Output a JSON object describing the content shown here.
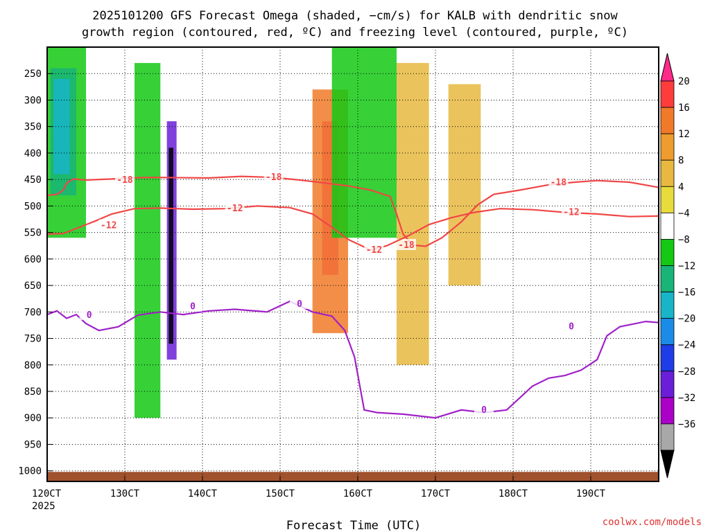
{
  "chart_data": {
    "type": "heatmap",
    "title": [
      "2025101200 GFS Forecast Omega (shaded, −cm/s) for KALB with dendritic snow",
      "growth region (contoured, red, ºC) and freezing level (contoured, purple, ºC)"
    ],
    "xlabel": "Forecast Time (UTC)",
    "ylabel": "",
    "xticks": [
      "120CT",
      "130CT",
      "140CT",
      "150CT",
      "160CT",
      "170CT",
      "180CT",
      "190CT"
    ],
    "xtick_sub": "2025",
    "x_range_hours": [
      0,
      189
    ],
    "yticks": [
      250,
      300,
      350,
      400,
      450,
      500,
      550,
      600,
      650,
      700,
      750,
      800,
      850,
      900,
      950,
      1000
    ],
    "y_range_hpa": [
      200,
      1020
    ],
    "colorbar": {
      "labels": [
        "20",
        "16",
        "12",
        "8",
        "4",
        "−4",
        "−8",
        "−12",
        "−16",
        "−20",
        "−24",
        "−28",
        "−32",
        "−36"
      ],
      "colors": [
        "#ff2a8a",
        "#ff3c3c",
        "#f07a28",
        "#ee9c2e",
        "#e8b840",
        "#e8dc3c",
        "#ffffff",
        "#14c814",
        "#18b478",
        "#18b4c8",
        "#1a8ce8",
        "#1e3ce8",
        "#6a1ed8",
        "#aa00c8",
        "#a8a8a8",
        "#000000"
      ]
    },
    "contours": [
      {
        "name": "-18 ºC",
        "color": "#f04646",
        "points": [
          [
            0,
            480
          ],
          [
            3,
            478
          ],
          [
            5,
            470
          ],
          [
            6,
            457
          ],
          [
            8,
            449
          ],
          [
            12,
            451
          ],
          [
            20,
            449
          ],
          [
            25,
            447
          ],
          [
            33,
            446
          ],
          [
            50,
            447
          ],
          [
            60,
            444
          ],
          [
            70,
            446
          ],
          [
            78,
            451
          ],
          [
            85,
            456
          ],
          [
            93,
            462
          ],
          [
            100,
            470
          ],
          [
            106,
            482
          ],
          [
            108,
            515
          ],
          [
            110,
            553
          ],
          [
            113,
            574
          ],
          [
            117,
            576
          ],
          [
            122,
            560
          ],
          [
            128,
            530
          ],
          [
            133,
            498
          ],
          [
            138,
            478
          ],
          [
            146,
            470
          ],
          [
            155,
            460
          ],
          [
            163,
            455
          ],
          [
            170,
            452
          ],
          [
            180,
            455
          ],
          [
            189,
            465
          ]
        ],
        "labels": [
          {
            "text": "-18",
            "x": 24,
            "y": 451
          },
          {
            "text": "-18",
            "x": 70,
            "y": 446
          },
          {
            "text": "-18",
            "x": 111,
            "y": 574
          },
          {
            "text": "-18",
            "x": 158,
            "y": 456
          }
        ]
      },
      {
        "name": "-12 ºC",
        "color": "#f04646",
        "points": [
          [
            0,
            553
          ],
          [
            5,
            552
          ],
          [
            10,
            540
          ],
          [
            15,
            528
          ],
          [
            20,
            515
          ],
          [
            27,
            505
          ],
          [
            35,
            504
          ],
          [
            45,
            506
          ],
          [
            55,
            505
          ],
          [
            65,
            500
          ],
          [
            75,
            503
          ],
          [
            82,
            515
          ],
          [
            88,
            540
          ],
          [
            93,
            563
          ],
          [
            100,
            583
          ],
          [
            105,
            575
          ],
          [
            112,
            555
          ],
          [
            118,
            535
          ],
          [
            125,
            522
          ],
          [
            132,
            512
          ],
          [
            140,
            505
          ],
          [
            150,
            507
          ],
          [
            160,
            512
          ],
          [
            170,
            515
          ],
          [
            180,
            520
          ],
          [
            189,
            519
          ]
        ],
        "labels": [
          {
            "text": "-12",
            "x": 19,
            "y": 537
          },
          {
            "text": "-12",
            "x": 58,
            "y": 505
          },
          {
            "text": "-12",
            "x": 101,
            "y": 583
          },
          {
            "text": "-12",
            "x": 162,
            "y": 512
          }
        ]
      },
      {
        "name": "0 ºC",
        "color": "#a020c8",
        "points": [
          [
            0,
            705
          ],
          [
            3,
            698
          ],
          [
            6,
            712
          ],
          [
            9,
            705
          ],
          [
            12,
            722
          ],
          [
            16,
            735
          ],
          [
            22,
            728
          ],
          [
            28,
            706
          ],
          [
            35,
            700
          ],
          [
            42,
            705
          ],
          [
            50,
            698
          ],
          [
            58,
            695
          ],
          [
            68,
            700
          ],
          [
            75,
            680
          ],
          [
            82,
            700
          ],
          [
            88,
            708
          ],
          [
            92,
            735
          ],
          [
            95,
            785
          ],
          [
            98,
            885
          ],
          [
            102,
            890
          ],
          [
            110,
            893
          ],
          [
            120,
            900
          ],
          [
            128,
            885
          ],
          [
            135,
            890
          ],
          [
            142,
            885
          ],
          [
            150,
            840
          ],
          [
            155,
            825
          ],
          [
            160,
            820
          ],
          [
            165,
            810
          ],
          [
            170,
            790
          ],
          [
            173,
            745
          ],
          [
            177,
            728
          ],
          [
            185,
            718
          ],
          [
            189,
            720
          ]
        ],
        "labels": [
          {
            "text": "0",
            "x": 13,
            "y": 706
          },
          {
            "text": "0",
            "x": 45,
            "y": 690
          },
          {
            "text": "0",
            "x": 78,
            "y": 685
          },
          {
            "text": "0",
            "x": 135,
            "y": 885
          },
          {
            "text": "0",
            "x": 162,
            "y": 728
          }
        ]
      }
    ],
    "shaded_regions": [
      {
        "color": "#14c814",
        "x_range": [
          0,
          12
        ],
        "p_range": [
          200,
          560
        ],
        "value": -8
      },
      {
        "color": "#18b478",
        "x_range": [
          1,
          9
        ],
        "p_range": [
          240,
          480
        ],
        "value": -12
      },
      {
        "color": "#18b4c8",
        "x_range": [
          2,
          7
        ],
        "p_range": [
          260,
          440
        ],
        "value": -16
      },
      {
        "color": "#14c814",
        "x_range": [
          27,
          35
        ],
        "p_range": [
          230,
          900
        ],
        "value": -8
      },
      {
        "color": "#6a1ed8",
        "x_range": [
          37,
          40
        ],
        "p_range": [
          340,
          790
        ],
        "value": -28
      },
      {
        "color": "#000000",
        "x_range": [
          37.6,
          39
        ],
        "p_range": [
          390,
          760
        ],
        "value": -36
      },
      {
        "color": "#ff2a8a",
        "x_range": [
          85,
          90
        ],
        "p_range": [
          340,
          630
        ],
        "value": 20
      },
      {
        "color": "#f07a28",
        "x_range": [
          82,
          93
        ],
        "p_range": [
          280,
          740
        ],
        "value": 12
      },
      {
        "color": "#14c814",
        "x_range": [
          88,
          108
        ],
        "p_range": [
          200,
          560
        ],
        "value": -8
      },
      {
        "color": "#e8b840",
        "x_range": [
          108,
          118
        ],
        "p_range": [
          230,
          800
        ],
        "value": 8
      },
      {
        "color": "#e8b840",
        "x_range": [
          124,
          134
        ],
        "p_range": [
          270,
          650
        ],
        "value": 8
      },
      {
        "color": "#a0522d",
        "x_range": [
          0,
          189
        ],
        "p_range": [
          1002,
          1020
        ],
        "value": null
      }
    ]
  },
  "credit": "coolwx.com/models"
}
